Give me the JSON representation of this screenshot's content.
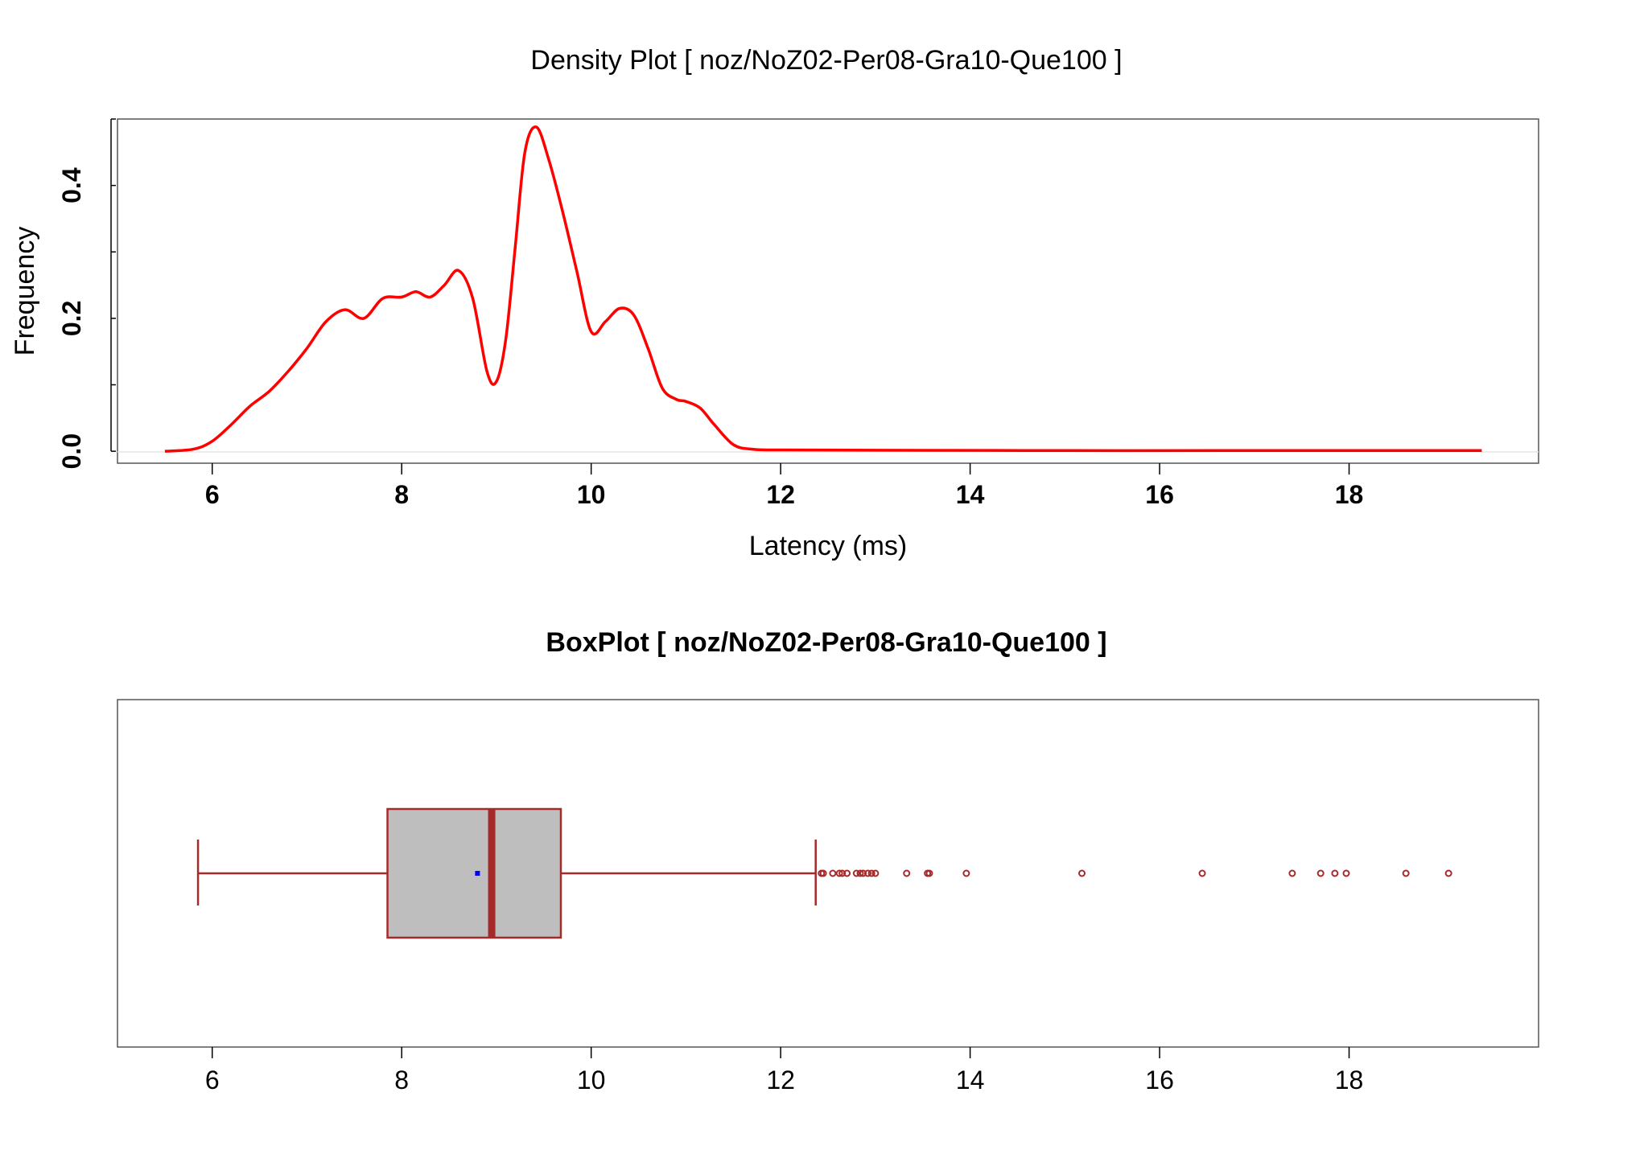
{
  "chart_data": [
    {
      "type": "line",
      "title": "Density Plot [ noz/NoZ02-Per08-Gra10-Que100 ]",
      "xlabel": "Latency (ms)",
      "ylabel": "Frequency",
      "xlim": [
        5.0,
        20.0
      ],
      "ylim": [
        -0.018,
        0.5
      ],
      "x_ticks": [
        "6",
        "8",
        "10",
        "12",
        "14",
        "16",
        "18"
      ],
      "y_ticks": [
        "0.0",
        "0.2",
        "0.4"
      ],
      "grid": false,
      "colors": {
        "line": "#ff0000",
        "axis": "#000000"
      },
      "series": [
        {
          "x": [
            5.5,
            5.8,
            6.0,
            6.2,
            6.4,
            6.6,
            6.8,
            7.0,
            7.2,
            7.4,
            7.6,
            7.8,
            8.0,
            8.15,
            8.3,
            8.45,
            8.6,
            8.75,
            8.9,
            9.0,
            9.1,
            9.2,
            9.3,
            9.42,
            9.55,
            9.7,
            9.85,
            10.0,
            10.15,
            10.3,
            10.45,
            10.6,
            10.75,
            10.9,
            11.0,
            11.15,
            11.3,
            11.5,
            11.7,
            12.0,
            13.0,
            15.0,
            17.0,
            19.4
          ],
          "y": [
            0.0,
            0.003,
            0.015,
            0.04,
            0.068,
            0.09,
            0.12,
            0.155,
            0.195,
            0.213,
            0.2,
            0.23,
            0.232,
            0.24,
            0.232,
            0.25,
            0.272,
            0.23,
            0.12,
            0.105,
            0.17,
            0.31,
            0.45,
            0.488,
            0.44,
            0.36,
            0.27,
            0.18,
            0.195,
            0.215,
            0.205,
            0.155,
            0.095,
            0.078,
            0.075,
            0.065,
            0.04,
            0.01,
            0.003,
            0.002,
            0.0015,
            0.001,
            0.001,
            0.001
          ]
        }
      ]
    },
    {
      "type": "box",
      "title": "BoxPlot [ noz/NoZ02-Per08-Gra10-Que100 ]",
      "xlim": [
        5.0,
        20.0
      ],
      "x_ticks": [
        "6",
        "8",
        "10",
        "12",
        "14",
        "16",
        "18"
      ],
      "colors": {
        "border": "#a52a2a",
        "fill": "#bebebe",
        "mean": "#0000ff"
      },
      "whisker_low": 5.85,
      "q1": 7.85,
      "median": 8.95,
      "q3": 9.68,
      "whisker_high": 12.37,
      "mean": 8.8,
      "outliers": [
        12.43,
        12.45,
        12.55,
        12.62,
        12.65,
        12.7,
        12.8,
        12.84,
        12.87,
        12.92,
        12.96,
        13.0,
        13.33,
        13.55,
        13.57,
        13.96,
        15.18,
        16.45,
        17.4,
        17.7,
        17.85,
        17.97,
        18.6,
        19.05
      ]
    }
  ]
}
